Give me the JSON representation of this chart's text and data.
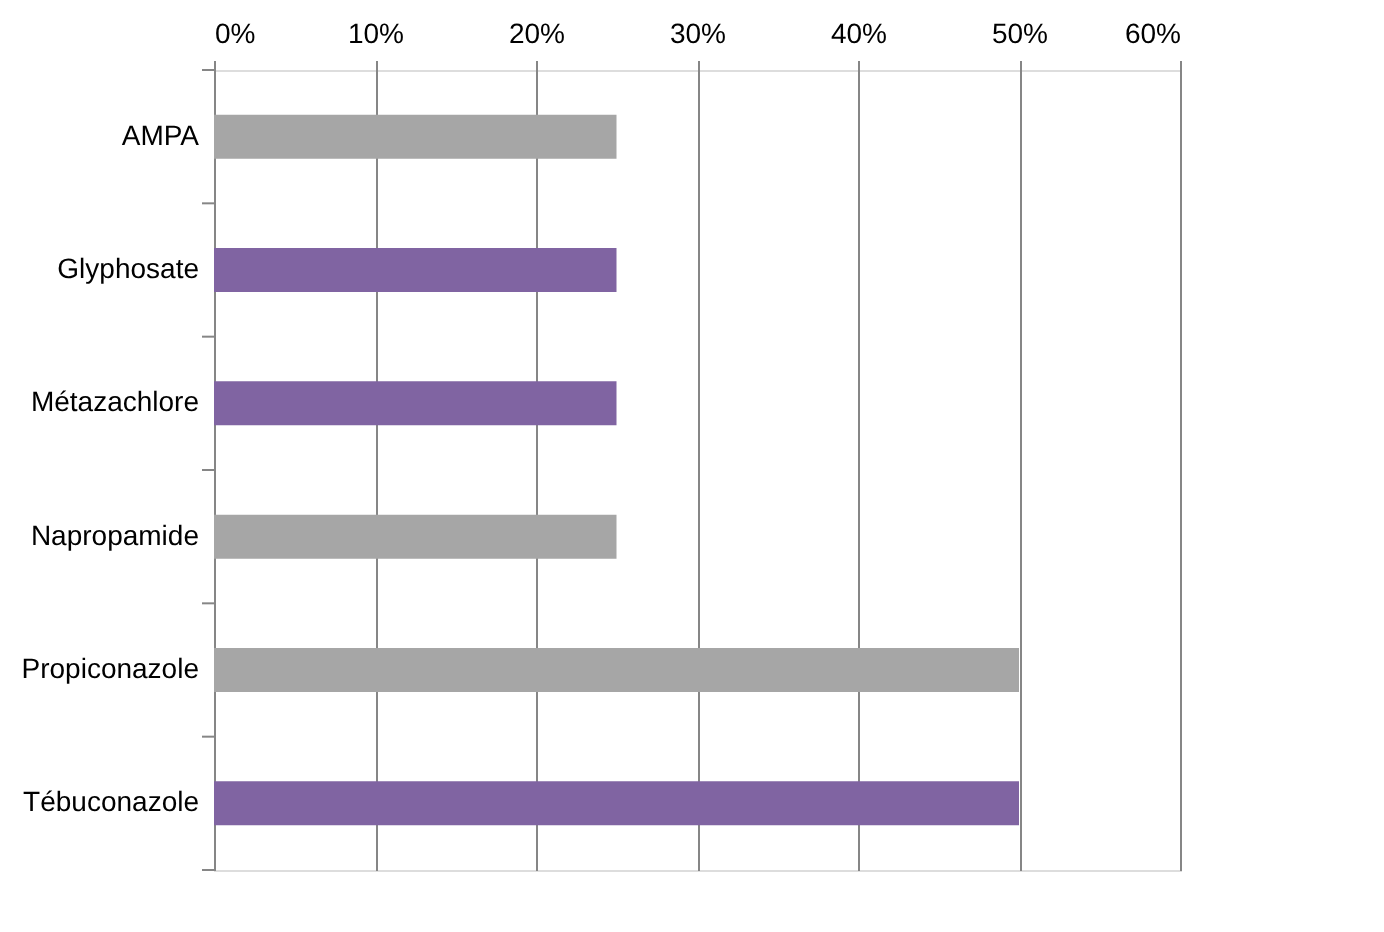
{
  "chart_data": {
    "type": "bar",
    "orientation": "horizontal",
    "categories": [
      "AMPA",
      "Glyphosate",
      "Métazachlore",
      "Napropamide",
      "Propiconazole",
      "Tébuconazole"
    ],
    "values": [
      25,
      25,
      25,
      25,
      50,
      50
    ],
    "colors": [
      "#a6a6a6",
      "#8064a2",
      "#8064a2",
      "#a6a6a6",
      "#a6a6a6",
      "#8064a2"
    ],
    "xlim": [
      0,
      60
    ],
    "xticks": [
      {
        "value": 0,
        "label": "0%"
      },
      {
        "value": 10,
        "label": "10%"
      },
      {
        "value": 20,
        "label": "20%"
      },
      {
        "value": 30,
        "label": "30%"
      },
      {
        "value": 40,
        "label": "40%"
      },
      {
        "value": 50,
        "label": "50%"
      },
      {
        "value": 60,
        "label": "60%"
      }
    ],
    "grid": "x",
    "legend": false
  }
}
